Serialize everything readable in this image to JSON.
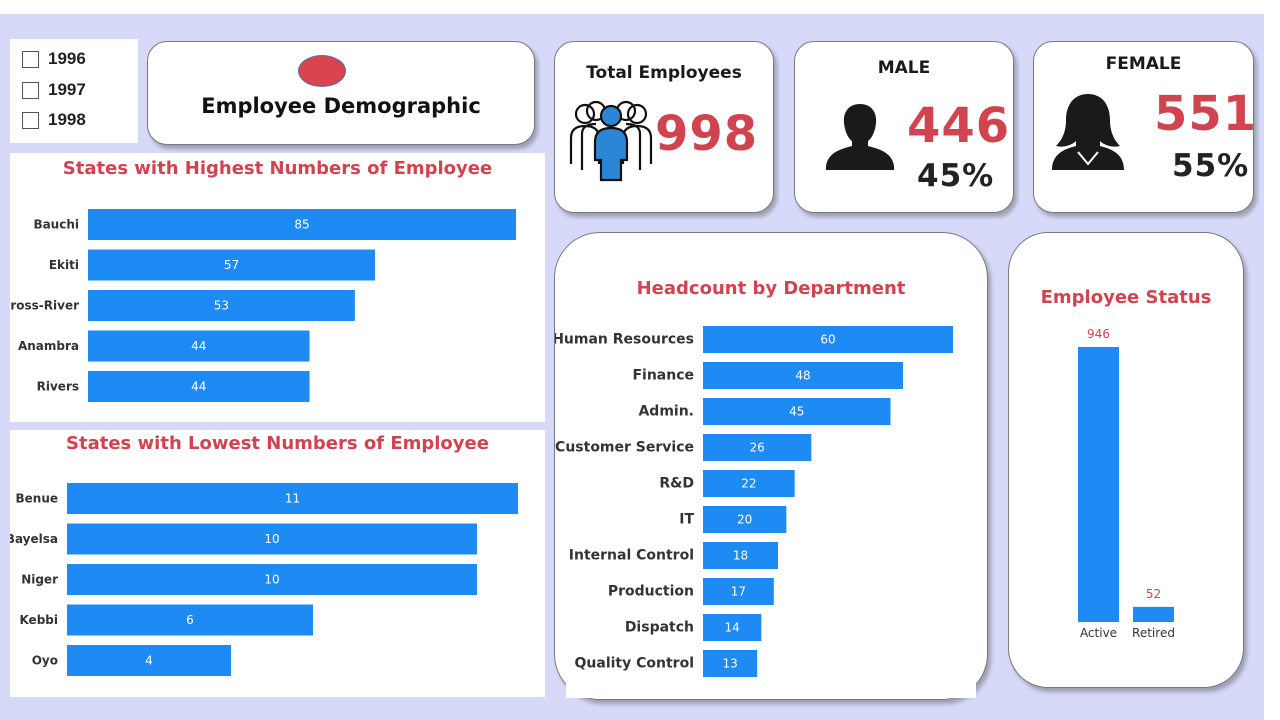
{
  "slicer": {
    "items": [
      {
        "label": "1996"
      },
      {
        "label": "1997"
      },
      {
        "label": "1998"
      }
    ]
  },
  "header": {
    "title": "Employee Demographic"
  },
  "kpi": {
    "total": {
      "title": "Total Employees",
      "value": "998"
    },
    "male": {
      "title": "MALE",
      "value": "446",
      "pct": "45%"
    },
    "female": {
      "title": "FEMALE",
      "value": "551",
      "pct": "55%"
    }
  },
  "colors": {
    "bar": "#1e8bf5",
    "accent": "#d1434f",
    "background": "#d6daf8"
  },
  "chart_data": [
    {
      "id": "highest",
      "type": "bar",
      "orientation": "horizontal",
      "title": "States with Highest Numbers of Employee",
      "categories": [
        "Bauchi",
        "Ekiti",
        "Cross-River",
        "Anambra",
        "Rivers"
      ],
      "values": [
        85,
        57,
        53,
        44,
        44
      ],
      "xlim": [
        0,
        85
      ]
    },
    {
      "id": "lowest",
      "type": "bar",
      "orientation": "horizontal",
      "title": "States with Lowest Numbers of Employee",
      "categories": [
        "Benue",
        "Bayelsa",
        "Niger",
        "Kebbi",
        "Oyo"
      ],
      "values": [
        11,
        10,
        10,
        6,
        4
      ],
      "xlim": [
        0,
        11
      ]
    },
    {
      "id": "department",
      "type": "bar",
      "orientation": "horizontal",
      "title": "Headcount by Department",
      "categories": [
        "Human Resources",
        "Finance",
        "Admin.",
        "Customer Service",
        "R&D",
        "IT",
        "Internal Control",
        "Production",
        "Dispatch",
        "Quality Control"
      ],
      "values": [
        60,
        48,
        45,
        26,
        22,
        20,
        18,
        17,
        14,
        13
      ],
      "xlim": [
        0,
        60
      ]
    },
    {
      "id": "status",
      "type": "bar",
      "orientation": "vertical",
      "title": "Employee Status",
      "categories": [
        "Active",
        "Retired"
      ],
      "values": [
        946,
        52
      ],
      "ylim": [
        0,
        946
      ]
    }
  ]
}
